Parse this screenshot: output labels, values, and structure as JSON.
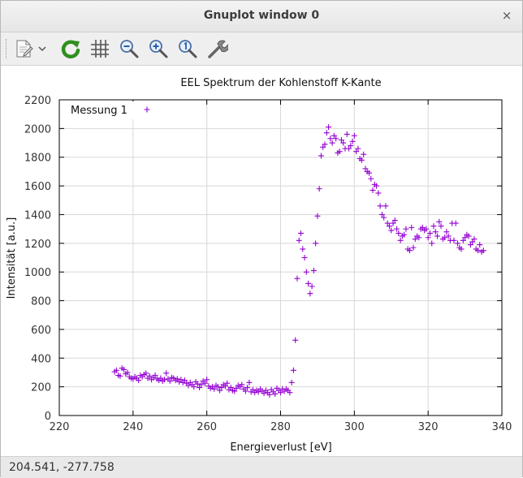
{
  "window": {
    "title": "Gnuplot window 0",
    "close_label": "×"
  },
  "toolbar": {
    "items": [
      {
        "icon": "export-icon",
        "label": "Export"
      },
      {
        "icon": "dropdown-arrow-icon",
        "label": "Export options"
      },
      {
        "icon": "replot-icon",
        "label": "Replot"
      },
      {
        "icon": "grid-icon",
        "label": "Show grid"
      },
      {
        "icon": "zoom-out-icon",
        "label": "Previous zoom"
      },
      {
        "icon": "zoom-in-icon",
        "label": "Next zoom"
      },
      {
        "icon": "zoom-reset-icon",
        "label": "Autoscale"
      },
      {
        "icon": "settings-wrench-icon",
        "label": "Configure"
      }
    ],
    "accent_green": "#2f8f1f"
  },
  "status": {
    "coordinates": "204.541, -277.758"
  },
  "chart_data": {
    "type": "scatter",
    "title": "EEL Spektrum der Kohlenstoff K-Kante",
    "xlabel": "Energieverlust [eV]",
    "ylabel": "Intensität [a.u.]",
    "xlim": [
      220,
      340
    ],
    "ylim": [
      0,
      2200
    ],
    "xticks": [
      220,
      240,
      260,
      280,
      300,
      320,
      340
    ],
    "yticks": [
      0,
      200,
      400,
      600,
      800,
      1000,
      1200,
      1400,
      1600,
      1800,
      2000,
      2200
    ],
    "grid": true,
    "legend_position": "top-left",
    "marker": "+",
    "series": [
      {
        "name": "Messung 1",
        "color": "#9400d3",
        "points": [
          [
            235,
            305
          ],
          [
            235.5,
            315
          ],
          [
            236,
            280
          ],
          [
            236.5,
            275
          ],
          [
            237,
            330
          ],
          [
            237.5,
            320
          ],
          [
            238,
            290
          ],
          [
            238.5,
            300
          ],
          [
            239,
            270
          ],
          [
            239.5,
            260
          ],
          [
            240,
            255
          ],
          [
            240.5,
            270
          ],
          [
            241,
            260
          ],
          [
            241.5,
            245
          ],
          [
            242,
            280
          ],
          [
            242.5,
            270
          ],
          [
            243,
            285
          ],
          [
            243.5,
            295
          ],
          [
            244,
            260
          ],
          [
            244.5,
            275
          ],
          [
            245,
            250
          ],
          [
            245.5,
            265
          ],
          [
            246,
            280
          ],
          [
            246.5,
            255
          ],
          [
            247,
            245
          ],
          [
            247.5,
            260
          ],
          [
            248,
            240
          ],
          [
            248.5,
            250
          ],
          [
            249,
            295
          ],
          [
            249.5,
            255
          ],
          [
            250,
            240
          ],
          [
            250.5,
            265
          ],
          [
            251,
            260
          ],
          [
            251.5,
            245
          ],
          [
            252,
            255
          ],
          [
            252.5,
            235
          ],
          [
            253,
            250
          ],
          [
            253.5,
            230
          ],
          [
            254,
            245
          ],
          [
            254.5,
            225
          ],
          [
            255,
            210
          ],
          [
            255.5,
            230
          ],
          [
            256,
            215
          ],
          [
            256.5,
            200
          ],
          [
            257,
            235
          ],
          [
            257.5,
            220
          ],
          [
            258,
            195
          ],
          [
            258.5,
            215
          ],
          [
            259,
            240
          ],
          [
            259.5,
            225
          ],
          [
            260,
            250
          ],
          [
            260.5,
            205
          ],
          [
            261,
            190
          ],
          [
            261.5,
            200
          ],
          [
            262,
            185
          ],
          [
            262.5,
            210
          ],
          [
            263,
            200
          ],
          [
            263.5,
            175
          ],
          [
            264,
            195
          ],
          [
            264.5,
            215
          ],
          [
            265,
            205
          ],
          [
            265.5,
            225
          ],
          [
            266,
            180
          ],
          [
            266.5,
            195
          ],
          [
            267,
            175
          ],
          [
            267.5,
            170
          ],
          [
            268,
            190
          ],
          [
            268.5,
            210
          ],
          [
            269,
            200
          ],
          [
            269.5,
            215
          ],
          [
            270,
            185
          ],
          [
            270.5,
            170
          ],
          [
            271,
            195
          ],
          [
            271.5,
            230
          ],
          [
            272,
            165
          ],
          [
            272.5,
            180
          ],
          [
            273,
            160
          ],
          [
            273.5,
            175
          ],
          [
            274,
            165
          ],
          [
            274.5,
            185
          ],
          [
            275,
            170
          ],
          [
            275.5,
            155
          ],
          [
            276,
            175
          ],
          [
            276.5,
            160
          ],
          [
            277,
            145
          ],
          [
            277.5,
            180
          ],
          [
            278,
            165
          ],
          [
            278.5,
            150
          ],
          [
            279,
            190
          ],
          [
            279.5,
            175
          ],
          [
            280,
            160
          ],
          [
            280.5,
            185
          ],
          [
            281,
            170
          ],
          [
            281.5,
            185
          ],
          [
            282,
            175
          ],
          [
            282.5,
            160
          ],
          [
            283,
            230
          ],
          [
            283.5,
            315
          ],
          [
            284,
            525
          ],
          [
            284.5,
            955
          ],
          [
            285,
            1220
          ],
          [
            285.5,
            1270
          ],
          [
            286,
            1160
          ],
          [
            286.5,
            1100
          ],
          [
            287,
            1000
          ],
          [
            287.5,
            920
          ],
          [
            288,
            850
          ],
          [
            288.5,
            900
          ],
          [
            289,
            1010
          ],
          [
            289.5,
            1200
          ],
          [
            290,
            1390
          ],
          [
            290.5,
            1580
          ],
          [
            291,
            1810
          ],
          [
            291.5,
            1870
          ],
          [
            292,
            1890
          ],
          [
            292.5,
            1970
          ],
          [
            293,
            2010
          ],
          [
            293.5,
            1930
          ],
          [
            294,
            1900
          ],
          [
            294.5,
            1950
          ],
          [
            295,
            1930
          ],
          [
            295.5,
            1830
          ],
          [
            296,
            1840
          ],
          [
            296.5,
            1920
          ],
          [
            297,
            1900
          ],
          [
            297.5,
            1860
          ],
          [
            298,
            1960
          ],
          [
            298.5,
            1860
          ],
          [
            299,
            1880
          ],
          [
            299.5,
            1910
          ],
          [
            300,
            1950
          ],
          [
            300.5,
            1840
          ],
          [
            301,
            1860
          ],
          [
            301.5,
            1790
          ],
          [
            302,
            1780
          ],
          [
            302.5,
            1820
          ],
          [
            303,
            1720
          ],
          [
            303.5,
            1700
          ],
          [
            304,
            1690
          ],
          [
            304.5,
            1650
          ],
          [
            305,
            1570
          ],
          [
            305.5,
            1610
          ],
          [
            306,
            1600
          ],
          [
            306.5,
            1550
          ],
          [
            307,
            1460
          ],
          [
            307.5,
            1400
          ],
          [
            308,
            1380
          ],
          [
            308.5,
            1460
          ],
          [
            309,
            1340
          ],
          [
            309.5,
            1320
          ],
          [
            310,
            1290
          ],
          [
            310.5,
            1340
          ],
          [
            311,
            1360
          ],
          [
            311.5,
            1300
          ],
          [
            312,
            1270
          ],
          [
            312.5,
            1220
          ],
          [
            313,
            1250
          ],
          [
            313.5,
            1260
          ],
          [
            314,
            1300
          ],
          [
            314.5,
            1160
          ],
          [
            315,
            1150
          ],
          [
            315.5,
            1310
          ],
          [
            316,
            1170
          ],
          [
            316.5,
            1230
          ],
          [
            317,
            1250
          ],
          [
            317.5,
            1240
          ],
          [
            318,
            1300
          ],
          [
            318.5,
            1310
          ],
          [
            319,
            1290
          ],
          [
            319.5,
            1300
          ],
          [
            320,
            1240
          ],
          [
            320.5,
            1270
          ],
          [
            321,
            1200
          ],
          [
            321.5,
            1320
          ],
          [
            322,
            1280
          ],
          [
            322.5,
            1250
          ],
          [
            323,
            1350
          ],
          [
            323.5,
            1320
          ],
          [
            324,
            1230
          ],
          [
            324.5,
            1240
          ],
          [
            325,
            1280
          ],
          [
            325.5,
            1250
          ],
          [
            326,
            1220
          ],
          [
            326.5,
            1340
          ],
          [
            327,
            1220
          ],
          [
            327.5,
            1340
          ],
          [
            328,
            1200
          ],
          [
            328.5,
            1170
          ],
          [
            329,
            1160
          ],
          [
            329.5,
            1220
          ],
          [
            330,
            1240
          ],
          [
            330.5,
            1260
          ],
          [
            331,
            1250
          ],
          [
            331.5,
            1190
          ],
          [
            332,
            1210
          ],
          [
            332.5,
            1230
          ],
          [
            333,
            1160
          ],
          [
            333.5,
            1150
          ],
          [
            334,
            1190
          ],
          [
            334.5,
            1140
          ],
          [
            335,
            1150
          ]
        ]
      }
    ]
  }
}
